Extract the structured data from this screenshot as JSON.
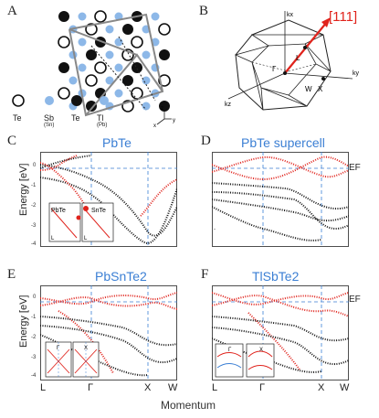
{
  "panels": {
    "A": {
      "letter": "A",
      "labels": [
        "Te",
        "Sb",
        "(Sn)",
        "Te",
        "Tl",
        "(Pb)"
      ],
      "axes": [
        "x",
        "y",
        "z"
      ]
    },
    "B": {
      "letter": "B",
      "direction": "[111]",
      "labels": [
        "Γ",
        "L",
        "X",
        "W"
      ],
      "axes": [
        "kx",
        "ky",
        "kz"
      ]
    },
    "C": {
      "letter": "C",
      "title": "PbTe",
      "ylabel": "Energy [eV]",
      "yticks": [
        "0",
        "-1",
        "-2",
        "-3",
        "-4"
      ],
      "insets": [
        "PbTe",
        "SnTe"
      ],
      "inset_labels": [
        "L",
        "L"
      ]
    },
    "D": {
      "letter": "D",
      "title": "PbTe supercell",
      "ef": "EF",
      "ytick": "-"
    },
    "E": {
      "letter": "E",
      "title": "PbSnTe2",
      "ylabel": "Energy [eV]",
      "yticks": [
        "0",
        "-1",
        "-2",
        "-3",
        "-4"
      ],
      "inset_labels": [
        "Γ",
        "X"
      ]
    },
    "F": {
      "letter": "F",
      "title": "TlSbTe2",
      "ef": "EF",
      "inset_labels": [
        "Γ",
        "X"
      ]
    }
  },
  "xaxis": {
    "left": [
      "L",
      "Γ",
      "X",
      "W"
    ],
    "right": [
      "L",
      "Γ",
      "X",
      "W"
    ],
    "label": "Momentum"
  },
  "colors": {
    "accent": "#3b7fd4",
    "red_band": "#e0231c",
    "black_band": "#111111",
    "atom_blue": "#8db8e8"
  }
}
